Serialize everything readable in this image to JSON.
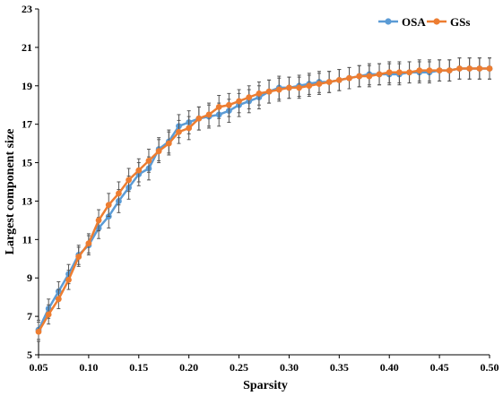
{
  "chart_data": {
    "type": "line",
    "title": "",
    "xlabel": "Sparsity",
    "ylabel": "Largest component size",
    "xlim": [
      0.05,
      0.5
    ],
    "ylim": [
      5,
      23
    ],
    "xticks": [
      0.05,
      0.1,
      0.15,
      0.2,
      0.25,
      0.3,
      0.35,
      0.4,
      0.45,
      0.5
    ],
    "xtick_labels": [
      "0.05",
      "0.10",
      "0.15",
      "0.20",
      "0.25",
      "0.30",
      "0.35",
      "0.40",
      "0.45",
      "0.50"
    ],
    "yticks": [
      5,
      7,
      9,
      11,
      13,
      15,
      17,
      19,
      21,
      23
    ],
    "ytick_labels": [
      "5",
      "7",
      "9",
      "11",
      "13",
      "15",
      "17",
      "19",
      "21",
      "23"
    ],
    "grid": false,
    "legend_position": "top-right",
    "x": [
      0.05,
      0.06,
      0.07,
      0.08,
      0.09,
      0.1,
      0.11,
      0.12,
      0.13,
      0.14,
      0.15,
      0.16,
      0.17,
      0.18,
      0.19,
      0.2,
      0.21,
      0.22,
      0.23,
      0.24,
      0.25,
      0.26,
      0.27,
      0.28,
      0.29,
      0.3,
      0.31,
      0.32,
      0.33,
      0.34,
      0.35,
      0.36,
      0.37,
      0.38,
      0.39,
      0.4,
      0.41,
      0.42,
      0.43,
      0.44,
      0.45,
      0.46,
      0.47,
      0.48,
      0.49,
      0.5
    ],
    "series": [
      {
        "name": "OSA",
        "color": "#5b9bd5",
        "values": [
          6.3,
          7.4,
          8.3,
          9.2,
          10.2,
          10.7,
          11.6,
          12.2,
          13.0,
          13.7,
          14.4,
          14.7,
          15.7,
          16.1,
          16.9,
          17.1,
          17.3,
          17.4,
          17.5,
          17.7,
          18.0,
          18.2,
          18.4,
          18.7,
          18.9,
          18.9,
          19.0,
          19.1,
          19.2,
          19.2,
          19.3,
          19.4,
          19.5,
          19.6,
          19.6,
          19.6,
          19.6,
          19.7,
          19.7,
          19.7,
          19.8,
          19.8,
          19.9,
          19.9,
          19.9,
          19.9
        ],
        "error": [
          0.5,
          0.5,
          0.5,
          0.5,
          0.5,
          0.5,
          0.55,
          0.6,
          0.6,
          0.6,
          0.6,
          0.6,
          0.6,
          0.6,
          0.6,
          0.6,
          0.6,
          0.6,
          0.6,
          0.6,
          0.6,
          0.6,
          0.6,
          0.6,
          0.6,
          0.55,
          0.55,
          0.55,
          0.55,
          0.55,
          0.55,
          0.55,
          0.55,
          0.55,
          0.55,
          0.55,
          0.55,
          0.55,
          0.55,
          0.55,
          0.55,
          0.55,
          0.55,
          0.55,
          0.55,
          0.55
        ]
      },
      {
        "name": "GSs",
        "color": "#ed7d31",
        "values": [
          6.2,
          7.1,
          7.9,
          8.9,
          10.1,
          10.8,
          12.0,
          12.8,
          13.4,
          14.1,
          14.6,
          15.1,
          15.6,
          16.0,
          16.6,
          16.8,
          17.3,
          17.5,
          17.9,
          18.0,
          18.2,
          18.4,
          18.6,
          18.7,
          18.8,
          18.9,
          18.9,
          19.0,
          19.1,
          19.2,
          19.3,
          19.4,
          19.5,
          19.5,
          19.6,
          19.7,
          19.7,
          19.7,
          19.8,
          19.8,
          19.8,
          19.8,
          19.9,
          19.9,
          19.9,
          19.9
        ],
        "error": [
          0.5,
          0.5,
          0.5,
          0.5,
          0.5,
          0.5,
          0.55,
          0.6,
          0.6,
          0.6,
          0.6,
          0.6,
          0.6,
          0.6,
          0.6,
          0.6,
          0.6,
          0.6,
          0.6,
          0.6,
          0.6,
          0.6,
          0.6,
          0.6,
          0.6,
          0.55,
          0.55,
          0.55,
          0.55,
          0.55,
          0.55,
          0.55,
          0.55,
          0.55,
          0.55,
          0.55,
          0.55,
          0.55,
          0.55,
          0.55,
          0.55,
          0.55,
          0.55,
          0.55,
          0.55,
          0.55
        ]
      }
    ]
  }
}
